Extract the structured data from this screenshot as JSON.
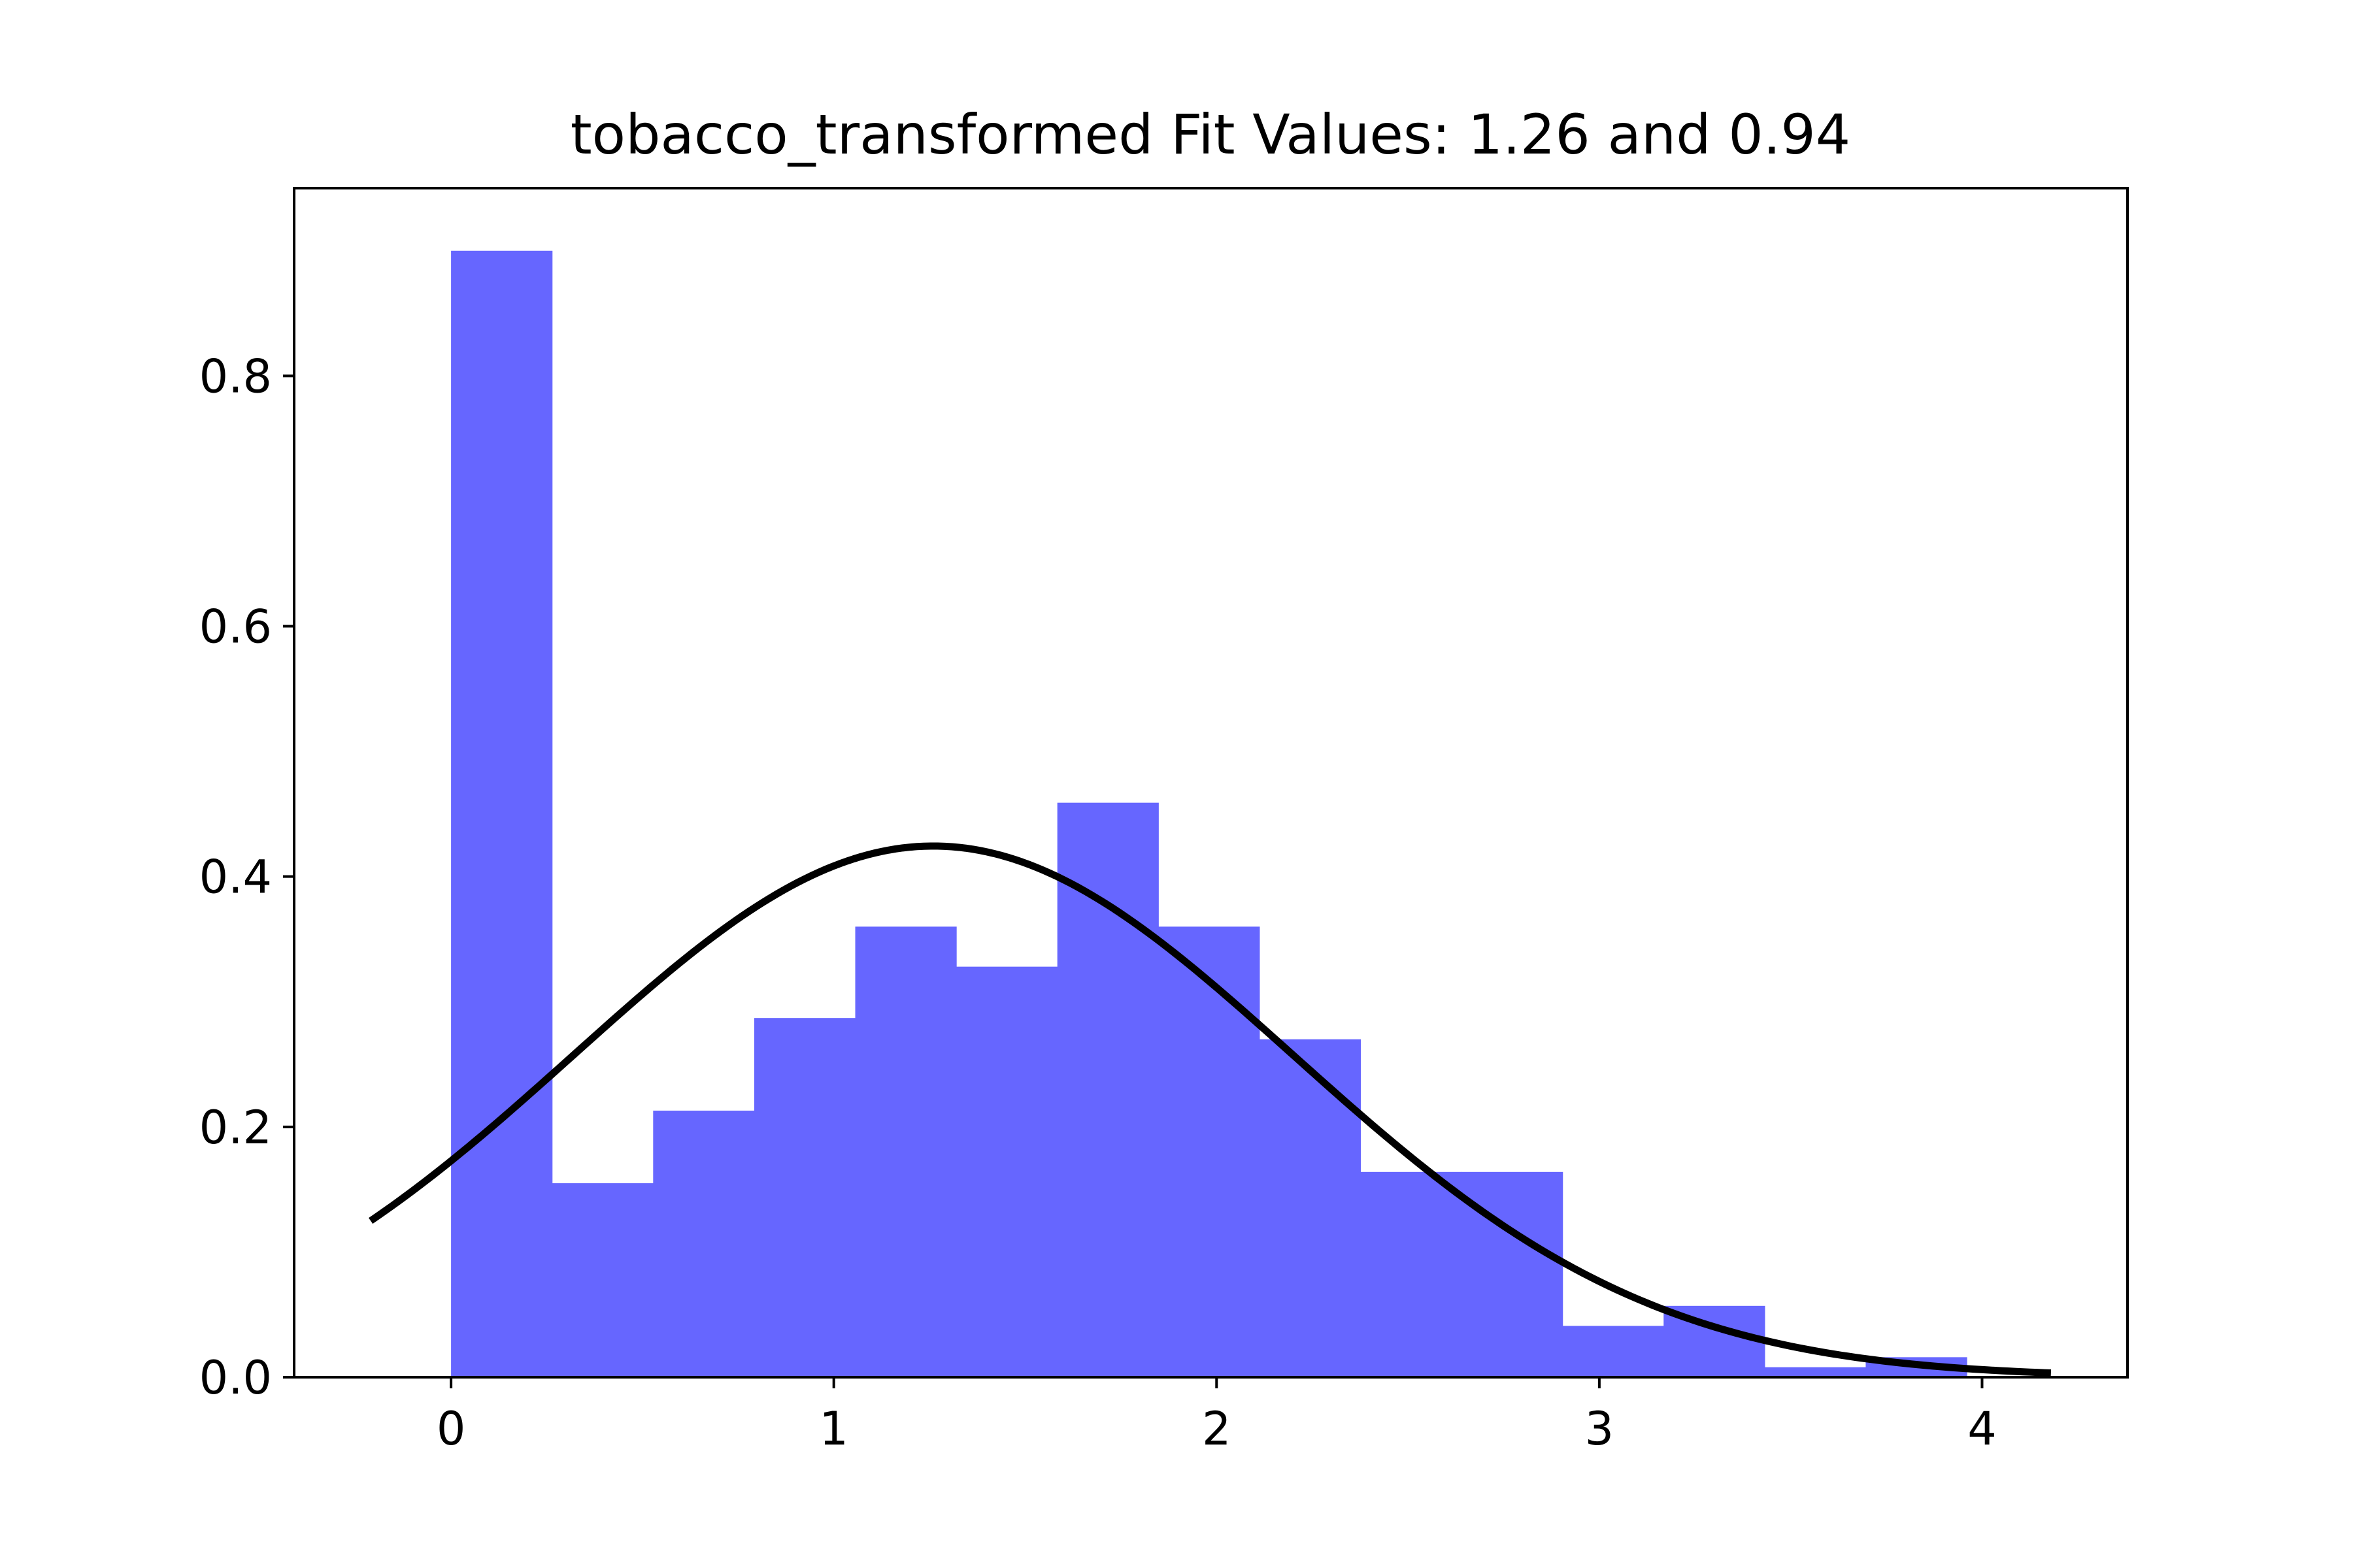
{
  "chart_data": {
    "type": "bar",
    "title": "tobacco_transformed Fit Values: 1.26 and 0.94",
    "xlabel": "",
    "ylabel": "",
    "xlim": [
      -0.41,
      4.38
    ],
    "ylim": [
      0,
      0.95
    ],
    "xticks": [
      0,
      1,
      2,
      3,
      4
    ],
    "xtick_labels": [
      "0",
      "1",
      "2",
      "3",
      "4"
    ],
    "yticks": [
      0.0,
      0.2,
      0.4,
      0.6,
      0.8
    ],
    "ytick_labels": [
      "0.0",
      "0.2",
      "0.4",
      "0.6",
      "0.8"
    ],
    "grid": false,
    "histogram": {
      "color": "#6666ff",
      "bin_edges": [
        0,
        0.264,
        0.528,
        0.792,
        1.056,
        1.32,
        1.584,
        1.848,
        2.112,
        2.376,
        2.64,
        2.904,
        3.168,
        3.432,
        3.696,
        3.96
      ],
      "values": [
        0.9,
        0.155,
        0.213,
        0.287,
        0.36,
        0.328,
        0.459,
        0.36,
        0.27,
        0.164,
        0.164,
        0.041,
        0.057,
        0.008,
        0.016
      ]
    },
    "fit_curve": {
      "type": "normal_pdf",
      "mean": 1.26,
      "std": 0.94,
      "x_range": [
        -0.21,
        4.18
      ],
      "color": "#000000"
    }
  }
}
